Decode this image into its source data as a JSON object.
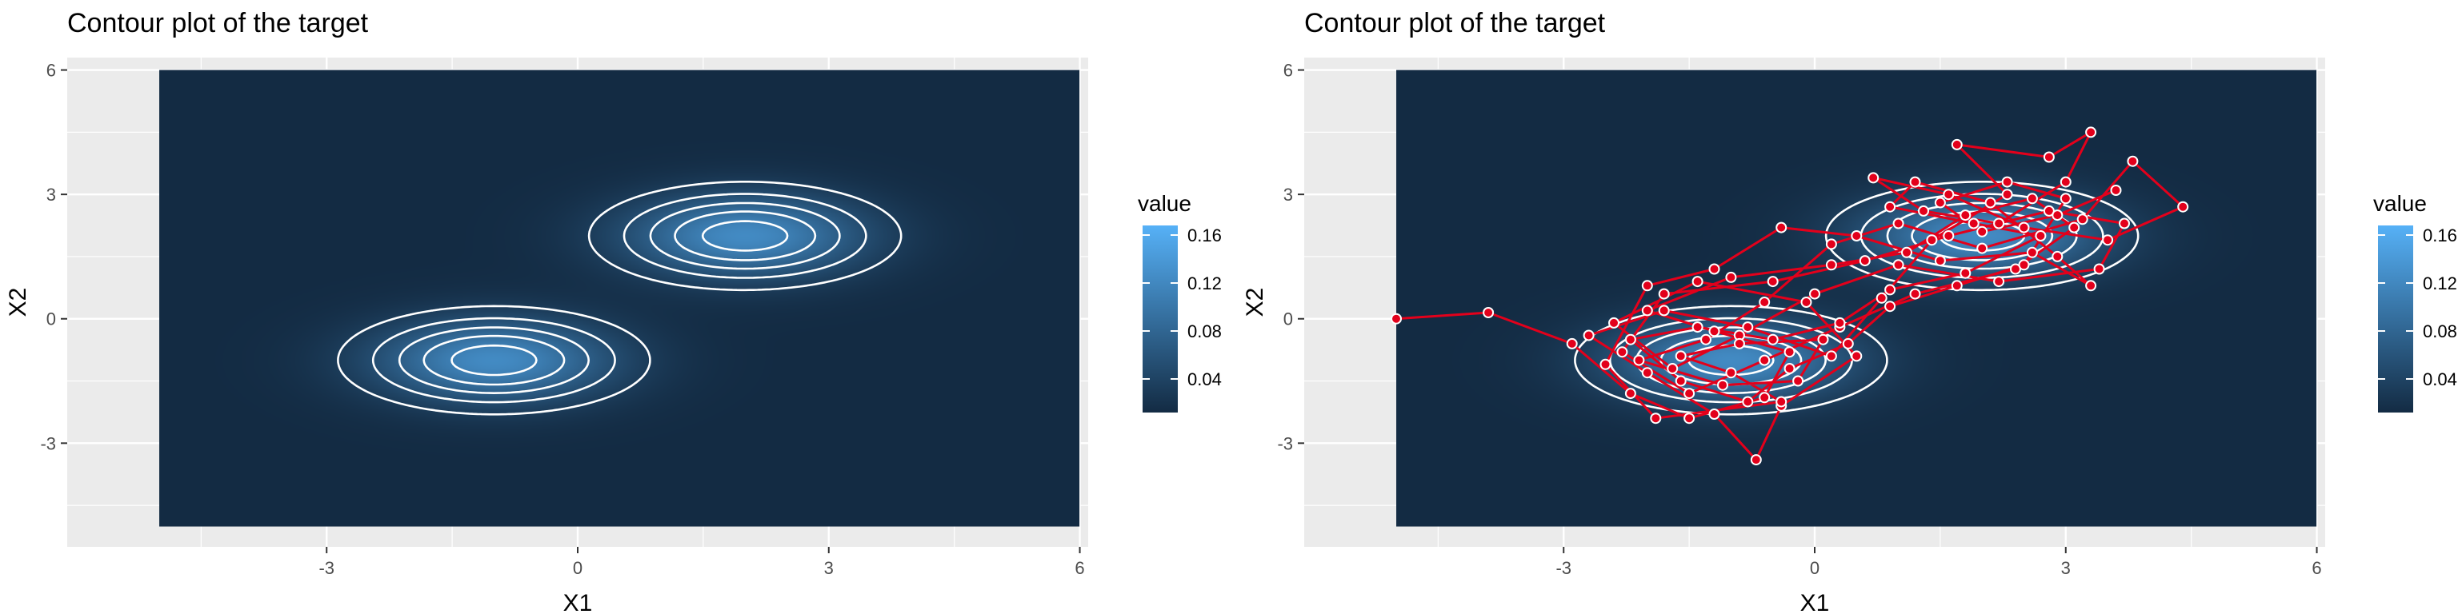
{
  "chart_data": [
    {
      "type": "heatmap",
      "title": "Contour plot of the target",
      "xlabel": "X1",
      "ylabel": "X2",
      "xlim": [
        -6.1,
        6.1
      ],
      "ylim": [
        -5.5,
        6.3
      ],
      "xticks": [
        -3,
        0,
        3,
        6
      ],
      "yticks": [
        -3,
        0,
        3,
        6
      ],
      "xtick_labels": [
        "-3",
        "0",
        "3",
        "6"
      ],
      "ytick_labels": [
        "-3",
        "0",
        "3",
        "6"
      ],
      "raster_extent": {
        "x": [
          -5,
          6
        ],
        "y": [
          -5,
          6
        ]
      },
      "grid": true,
      "legend": {
        "title": "value",
        "placement": "right",
        "breaks": [
          0.04,
          0.08,
          0.12,
          0.16
        ],
        "labels": [
          "0.04",
          "0.08",
          "0.12",
          "0.16"
        ],
        "low_color": "#132B43",
        "high_color": "#56B1F7"
      },
      "components": [
        {
          "mean": [
            -1,
            -1
          ],
          "sd": [
            1,
            0.7
          ],
          "weight": 0.5
        },
        {
          "mean": [
            2,
            2
          ],
          "sd": [
            1,
            0.7
          ],
          "weight": 0.5
        }
      ],
      "contour_color": "#ffffff"
    },
    {
      "type": "heatmap",
      "title": "Contour plot of the target",
      "xlabel": "X1",
      "ylabel": "X2",
      "xlim": [
        -6.1,
        6.1
      ],
      "ylim": [
        -5.5,
        6.3
      ],
      "xticks": [
        -3,
        0,
        3,
        6
      ],
      "yticks": [
        -3,
        0,
        3,
        6
      ],
      "xtick_labels": [
        "-3",
        "0",
        "3",
        "6"
      ],
      "ytick_labels": [
        "-3",
        "0",
        "3",
        "6"
      ],
      "raster_extent": {
        "x": [
          -5,
          6
        ],
        "y": [
          -5,
          6
        ]
      },
      "grid": true,
      "legend": {
        "title": "value",
        "placement": "right",
        "breaks": [
          0.04,
          0.08,
          0.12,
          0.16
        ],
        "labels": [
          "0.04",
          "0.08",
          "0.12",
          "0.16"
        ],
        "low_color": "#132B43",
        "high_color": "#56B1F7"
      },
      "components": [
        {
          "mean": [
            -1,
            -1
          ],
          "sd": [
            1,
            0.7
          ],
          "weight": 0.5
        },
        {
          "mean": [
            2,
            2
          ],
          "sd": [
            1,
            0.7
          ],
          "weight": 0.5
        }
      ],
      "contour_color": "#ffffff",
      "path_color": "#e3001b",
      "path": [
        [
          -5.0,
          0.0
        ],
        [
          -3.9,
          0.15
        ],
        [
          -2.9,
          -0.6
        ],
        [
          -2.2,
          -1.8
        ],
        [
          -1.5,
          -2.4
        ],
        [
          -0.6,
          -1.9
        ],
        [
          -0.3,
          -0.8
        ],
        [
          -1.2,
          -0.3
        ],
        [
          -2.0,
          0.2
        ],
        [
          -1.0,
          1.0
        ],
        [
          0.2,
          1.3
        ],
        [
          1.1,
          1.6
        ],
        [
          1.8,
          2.5
        ],
        [
          2.6,
          2.9
        ],
        [
          3.1,
          2.2
        ],
        [
          2.4,
          1.2
        ],
        [
          1.2,
          0.6
        ],
        [
          0.3,
          -0.2
        ],
        [
          -0.6,
          -1.0
        ],
        [
          -1.5,
          -1.8
        ],
        [
          -2.3,
          -0.8
        ],
        [
          -1.8,
          0.6
        ],
        [
          -0.5,
          0.9
        ],
        [
          0.6,
          1.4
        ],
        [
          1.6,
          2.0
        ],
        [
          2.8,
          2.6
        ],
        [
          3.7,
          2.3
        ],
        [
          3.4,
          1.2
        ],
        [
          2.2,
          0.9
        ],
        [
          1.0,
          1.3
        ],
        [
          0.0,
          0.6
        ],
        [
          -0.9,
          -0.4
        ],
        [
          -1.7,
          -1.2
        ],
        [
          -2.4,
          -0.1
        ],
        [
          -1.4,
          0.9
        ],
        [
          -0.1,
          0.4
        ],
        [
          0.5,
          -0.9
        ],
        [
          -0.4,
          -2.1
        ],
        [
          -0.7,
          -3.4
        ],
        [
          -1.2,
          -2.3
        ],
        [
          -2.0,
          -1.3
        ],
        [
          -2.7,
          -0.4
        ],
        [
          -1.8,
          0.2
        ],
        [
          -0.8,
          -0.2
        ],
        [
          0.2,
          -0.9
        ],
        [
          0.8,
          0.5
        ],
        [
          1.4,
          1.9
        ],
        [
          2.3,
          3.0
        ],
        [
          1.7,
          4.2
        ],
        [
          2.8,
          3.9
        ],
        [
          3.3,
          4.5
        ],
        [
          3.0,
          3.3
        ],
        [
          2.2,
          2.3
        ],
        [
          1.3,
          2.6
        ],
        [
          0.7,
          3.4
        ],
        [
          1.6,
          3.0
        ],
        [
          2.5,
          2.2
        ],
        [
          3.5,
          1.9
        ],
        [
          4.4,
          2.7
        ],
        [
          3.8,
          3.8
        ],
        [
          3.2,
          2.4
        ],
        [
          2.0,
          1.7
        ],
        [
          1.0,
          2.3
        ],
        [
          0.2,
          1.8
        ],
        [
          -0.6,
          0.4
        ],
        [
          -1.3,
          -0.5
        ],
        [
          -2.1,
          -1.0
        ],
        [
          -1.1,
          -1.6
        ],
        [
          -0.2,
          -1.5
        ],
        [
          0.1,
          -0.5
        ],
        [
          -0.9,
          -0.6
        ],
        [
          -1.6,
          -0.9
        ],
        [
          -1.0,
          -1.3
        ],
        [
          -0.4,
          -2.0
        ],
        [
          -1.9,
          -2.4
        ],
        [
          -2.5,
          -1.1
        ],
        [
          -2.0,
          0.8
        ],
        [
          -1.2,
          1.2
        ],
        [
          -0.4,
          2.2
        ],
        [
          0.5,
          2.0
        ],
        [
          1.5,
          1.4
        ],
        [
          2.6,
          1.6
        ],
        [
          3.3,
          0.8
        ],
        [
          2.9,
          1.5
        ],
        [
          2.1,
          2.8
        ],
        [
          1.2,
          3.3
        ],
        [
          0.9,
          2.7
        ],
        [
          1.9,
          2.3
        ],
        [
          2.7,
          2.0
        ],
        [
          1.8,
          1.1
        ],
        [
          0.9,
          0.7
        ],
        [
          0.3,
          -0.1
        ],
        [
          -0.5,
          -0.5
        ],
        [
          -1.4,
          -0.2
        ],
        [
          -2.2,
          -0.5
        ],
        [
          -1.6,
          -1.5
        ],
        [
          -0.8,
          -2.0
        ],
        [
          -0.3,
          -1.2
        ],
        [
          0.4,
          -0.6
        ],
        [
          0.9,
          0.3
        ],
        [
          1.7,
          0.8
        ],
        [
          2.5,
          1.3
        ],
        [
          3.0,
          2.9
        ],
        [
          2.3,
          3.3
        ],
        [
          1.5,
          2.8
        ],
        [
          2.0,
          2.1
        ],
        [
          2.9,
          2.5
        ],
        [
          3.6,
          3.1
        ]
      ]
    }
  ]
}
